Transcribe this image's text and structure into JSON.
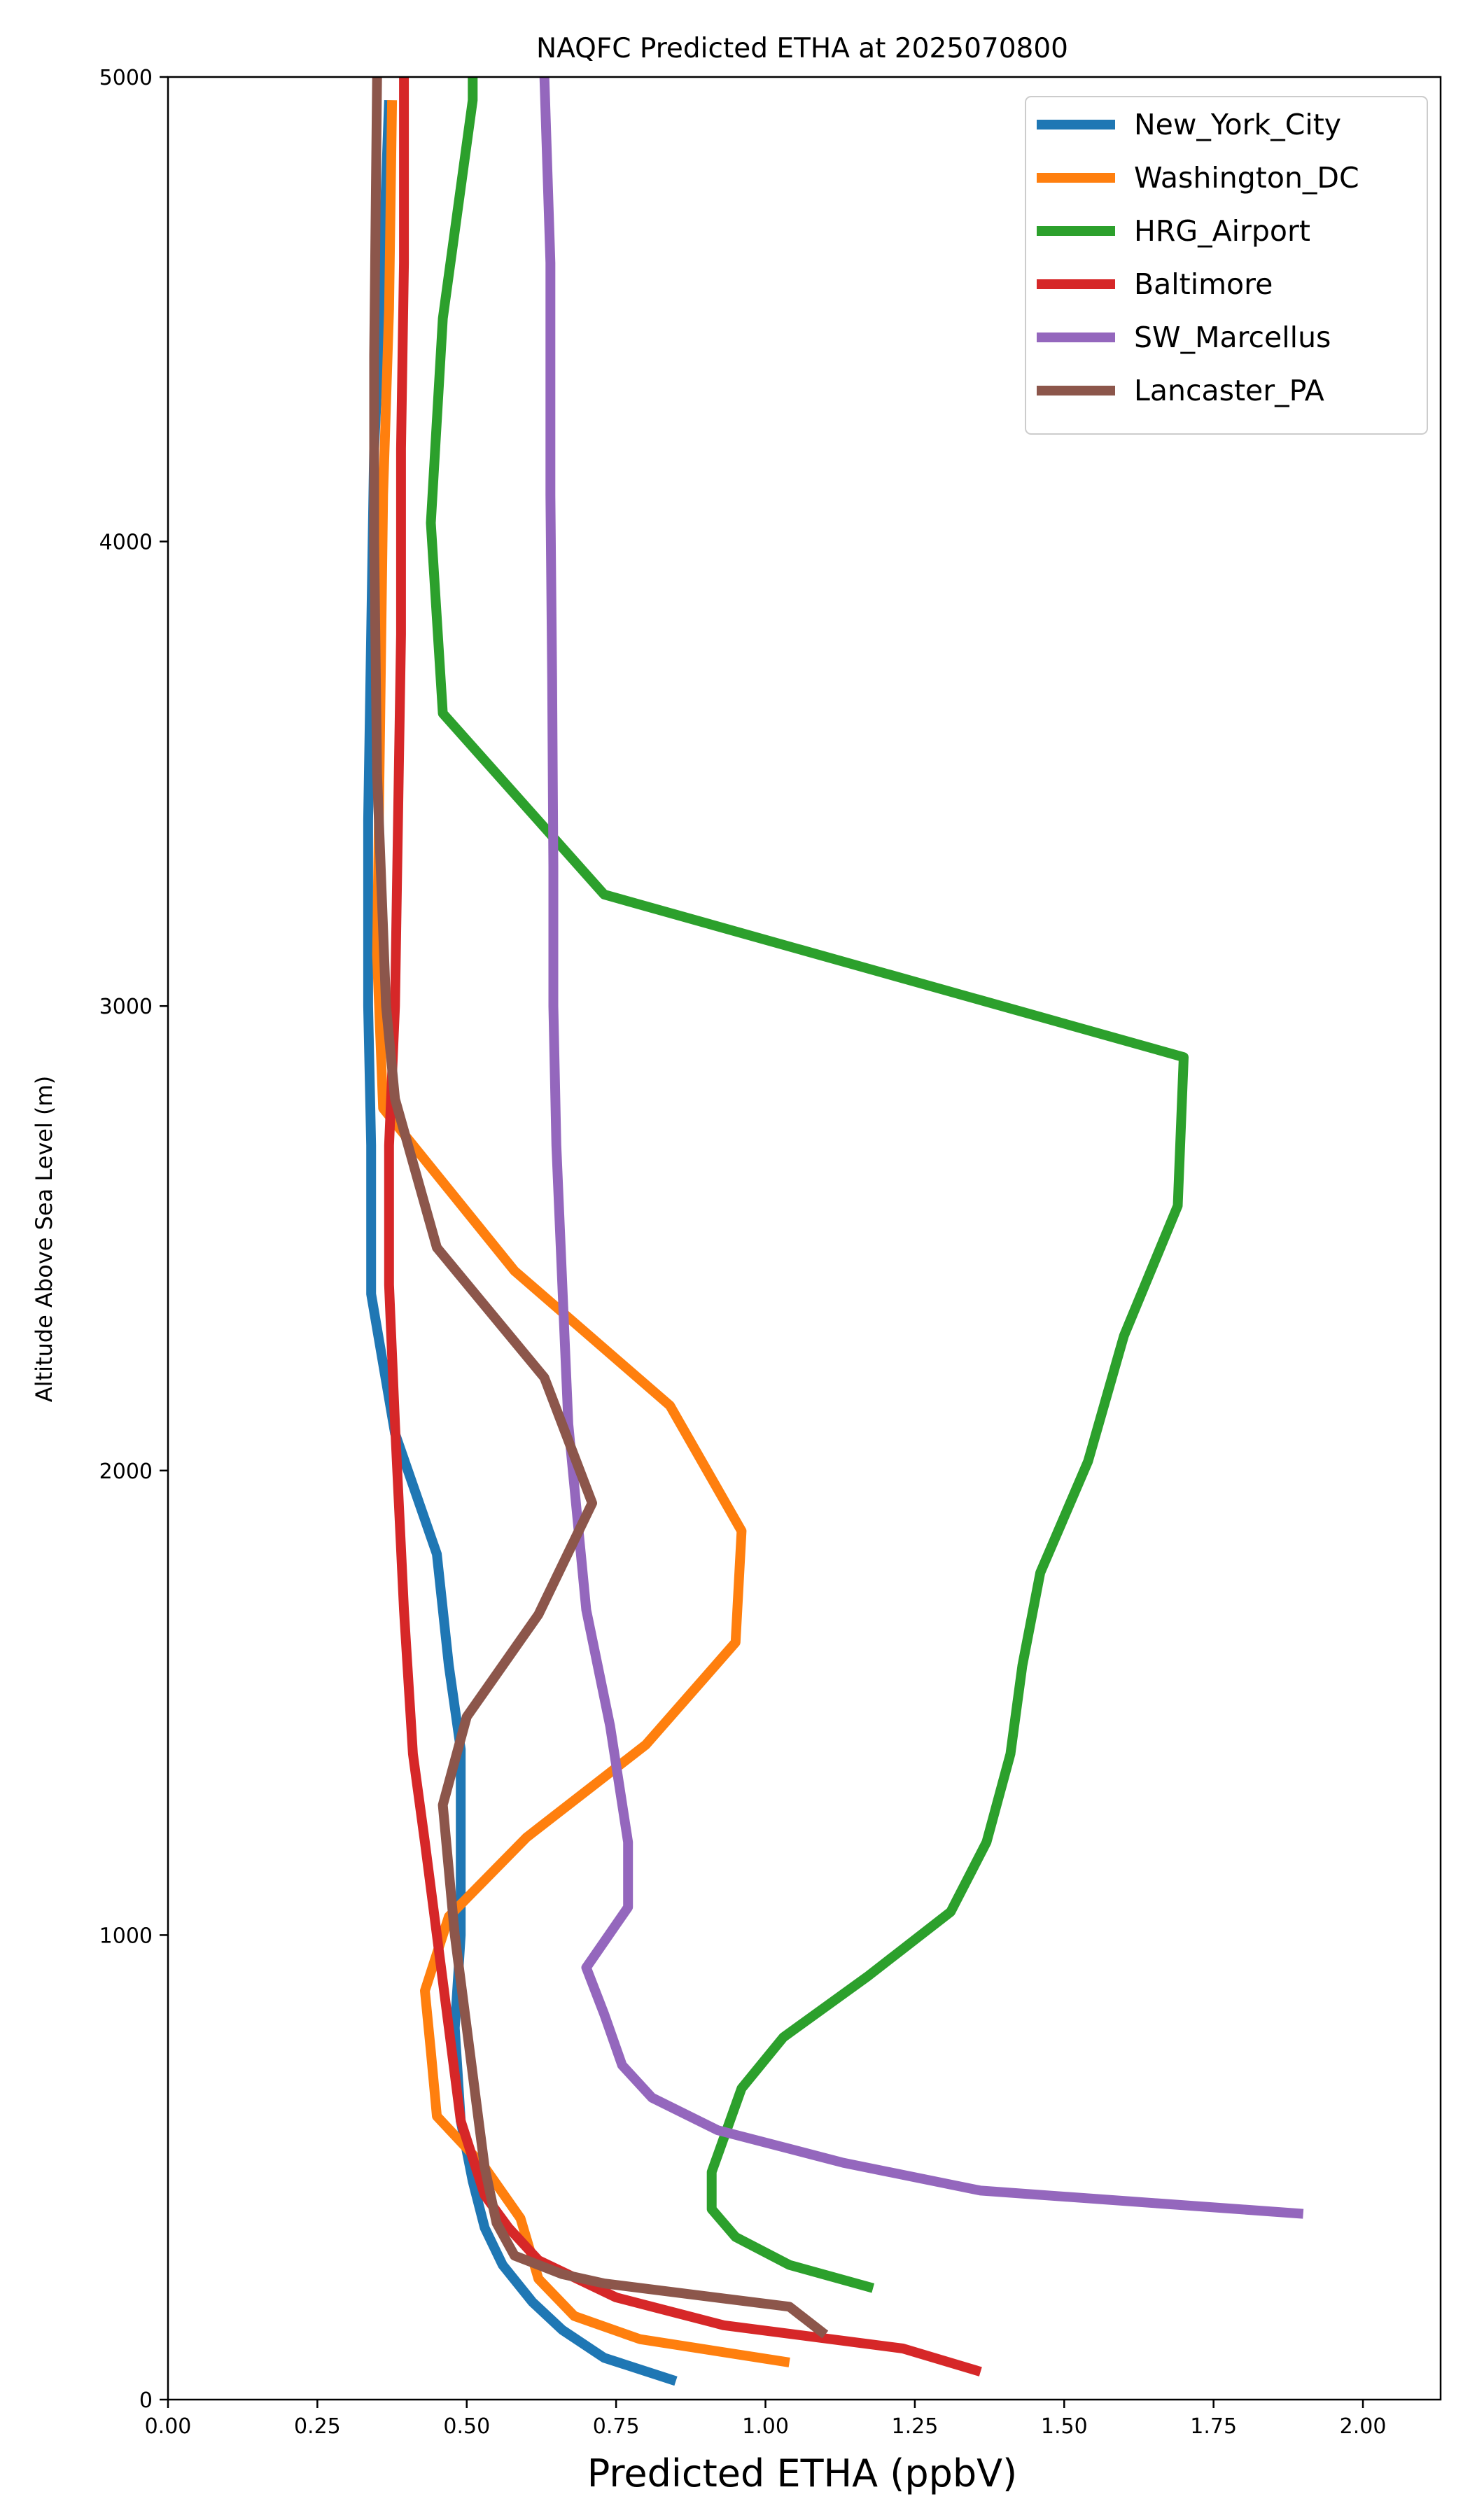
{
  "chart_data": {
    "type": "line",
    "title": "NAQFC Predicted ETHA at 2025070800",
    "xlabel": "Predicted ETHA (ppbV)",
    "ylabel": "Altitude Above Sea Level (m)",
    "xlim": [
      0,
      2.13
    ],
    "ylim": [
      0,
      5000
    ],
    "xticks": [
      "0.00",
      "0.25",
      "0.50",
      "0.75",
      "1.00",
      "1.25",
      "1.50",
      "1.75",
      "2.00"
    ],
    "yticks": [
      "0",
      "1000",
      "2000",
      "3000",
      "4000",
      "5000"
    ],
    "grid": false,
    "legend_position": "top-right",
    "series": [
      {
        "name": "New_York_City",
        "color": "#1f77b4",
        "points": [
          [
            0.85,
            40
          ],
          [
            0.73,
            90
          ],
          [
            0.66,
            150
          ],
          [
            0.61,
            210
          ],
          [
            0.56,
            290
          ],
          [
            0.53,
            370
          ],
          [
            0.51,
            470
          ],
          [
            0.49,
            600
          ],
          [
            0.48,
            800
          ],
          [
            0.49,
            1000
          ],
          [
            0.49,
            1200
          ],
          [
            0.49,
            1400
          ],
          [
            0.47,
            1580
          ],
          [
            0.45,
            1820
          ],
          [
            0.38,
            2080
          ],
          [
            0.34,
            2380
          ],
          [
            0.34,
            2700
          ],
          [
            0.335,
            3000
          ],
          [
            0.335,
            3400
          ],
          [
            0.34,
            3800
          ],
          [
            0.345,
            4200
          ],
          [
            0.36,
            4600
          ],
          [
            0.37,
            4950
          ]
        ]
      },
      {
        "name": "Washington_DC",
        "color": "#ff7f0e",
        "points": [
          [
            1.04,
            80
          ],
          [
            0.79,
            130
          ],
          [
            0.68,
            180
          ],
          [
            0.62,
            260
          ],
          [
            0.59,
            390
          ],
          [
            0.53,
            500
          ],
          [
            0.45,
            610
          ],
          [
            0.44,
            750
          ],
          [
            0.43,
            880
          ],
          [
            0.47,
            1040
          ],
          [
            0.6,
            1210
          ],
          [
            0.8,
            1410
          ],
          [
            0.95,
            1630
          ],
          [
            0.96,
            1870
          ],
          [
            0.84,
            2140
          ],
          [
            0.58,
            2430
          ],
          [
            0.36,
            2780
          ],
          [
            0.35,
            3110
          ],
          [
            0.355,
            3600
          ],
          [
            0.36,
            4100
          ],
          [
            0.37,
            4500
          ],
          [
            0.375,
            4950
          ]
        ]
      },
      {
        "name": "HRG_Airport",
        "color": "#2ca02c",
        "points": [
          [
            1.18,
            240
          ],
          [
            1.04,
            290
          ],
          [
            0.95,
            350
          ],
          [
            0.91,
            410
          ],
          [
            0.91,
            490
          ],
          [
            0.96,
            670
          ],
          [
            1.03,
            780
          ],
          [
            1.17,
            910
          ],
          [
            1.31,
            1050
          ],
          [
            1.37,
            1200
          ],
          [
            1.41,
            1390
          ],
          [
            1.43,
            1580
          ],
          [
            1.46,
            1780
          ],
          [
            1.54,
            2020
          ],
          [
            1.6,
            2290
          ],
          [
            1.69,
            2570
          ],
          [
            1.7,
            2890
          ],
          [
            0.73,
            3240
          ],
          [
            0.46,
            3630
          ],
          [
            0.44,
            4040
          ],
          [
            0.46,
            4480
          ],
          [
            0.51,
            4950
          ],
          [
            0.51,
            5000
          ]
        ]
      },
      {
        "name": "Baltimore",
        "color": "#d62728",
        "points": [
          [
            1.36,
            60
          ],
          [
            1.23,
            110
          ],
          [
            0.93,
            160
          ],
          [
            0.75,
            220
          ],
          [
            0.62,
            300
          ],
          [
            0.57,
            370
          ],
          [
            0.53,
            440
          ],
          [
            0.49,
            600
          ],
          [
            0.47,
            800
          ],
          [
            0.45,
            1000
          ],
          [
            0.43,
            1200
          ],
          [
            0.41,
            1390
          ],
          [
            0.395,
            1700
          ],
          [
            0.38,
            2100
          ],
          [
            0.37,
            2400
          ],
          [
            0.37,
            2700
          ],
          [
            0.38,
            3000
          ],
          [
            0.385,
            3400
          ],
          [
            0.39,
            3800
          ],
          [
            0.39,
            4200
          ],
          [
            0.395,
            4600
          ],
          [
            0.395,
            5000
          ]
        ]
      },
      {
        "name": "SW_Marcellus",
        "color": "#9467bd",
        "points": [
          [
            1.9,
            400
          ],
          [
            1.36,
            450
          ],
          [
            1.13,
            510
          ],
          [
            0.92,
            580
          ],
          [
            0.81,
            650
          ],
          [
            0.76,
            720
          ],
          [
            0.73,
            830
          ],
          [
            0.7,
            930
          ],
          [
            0.77,
            1060
          ],
          [
            0.77,
            1200
          ],
          [
            0.74,
            1450
          ],
          [
            0.7,
            1700
          ],
          [
            0.67,
            2100
          ],
          [
            0.66,
            2400
          ],
          [
            0.65,
            2700
          ],
          [
            0.645,
            3000
          ],
          [
            0.645,
            3300
          ],
          [
            0.643,
            3700
          ],
          [
            0.64,
            4100
          ],
          [
            0.64,
            4600
          ],
          [
            0.63,
            5000
          ]
        ]
      },
      {
        "name": "Lancaster_PA",
        "color": "#8c564b",
        "points": [
          [
            1.1,
            140
          ],
          [
            1.04,
            200
          ],
          [
            0.73,
            250
          ],
          [
            0.66,
            270
          ],
          [
            0.58,
            310
          ],
          [
            0.55,
            380
          ],
          [
            0.53,
            500
          ],
          [
            0.52,
            600
          ],
          [
            0.5,
            800
          ],
          [
            0.48,
            1000
          ],
          [
            0.46,
            1280
          ],
          [
            0.5,
            1470
          ],
          [
            0.62,
            1690
          ],
          [
            0.71,
            1930
          ],
          [
            0.63,
            2200
          ],
          [
            0.45,
            2480
          ],
          [
            0.38,
            2800
          ],
          [
            0.365,
            3000
          ],
          [
            0.35,
            3500
          ],
          [
            0.345,
            4000
          ],
          [
            0.345,
            4400
          ],
          [
            0.35,
            5000
          ]
        ]
      }
    ]
  }
}
